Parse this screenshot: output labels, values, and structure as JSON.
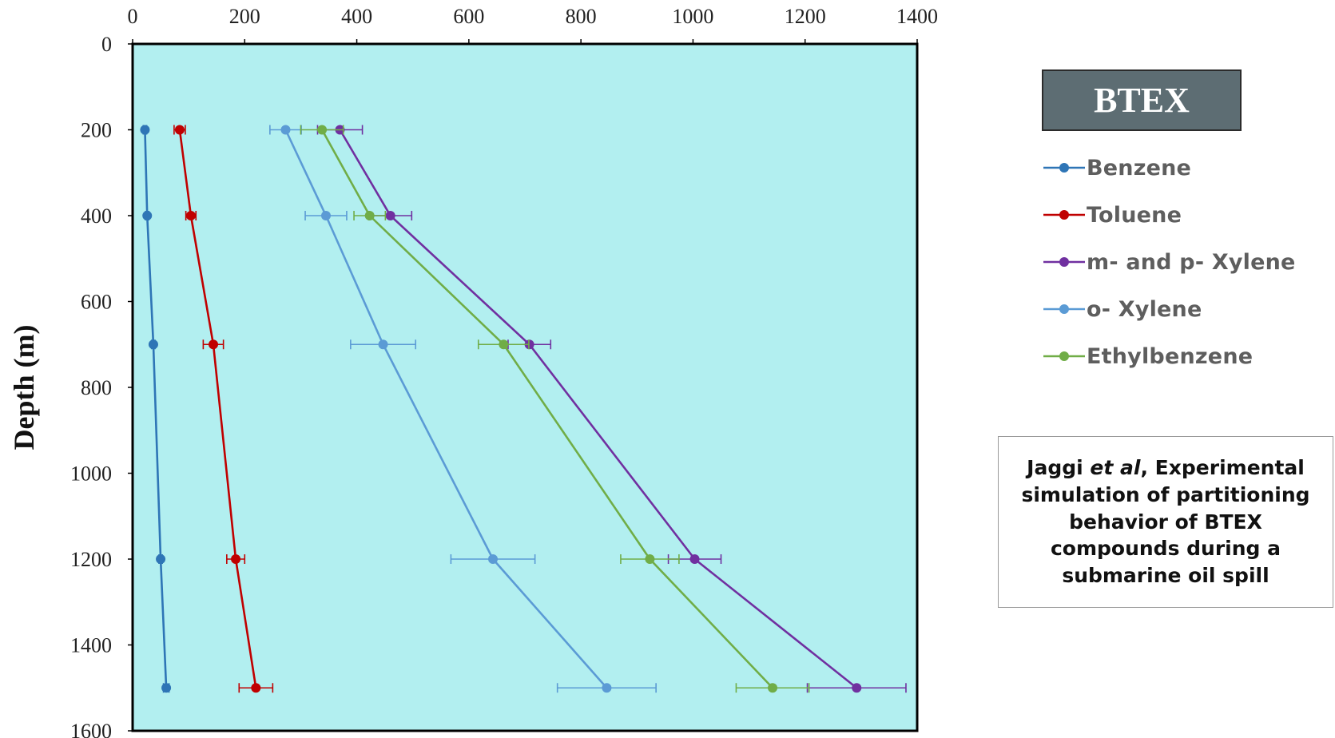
{
  "chart_data": {
    "type": "line",
    "ylabel": "Depth (m)",
    "xlabel": "",
    "x_axis_position": "top",
    "y_axis_reversed": true,
    "xlim": [
      0,
      1400
    ],
    "ylim": [
      0,
      1600
    ],
    "x_ticks": [
      0,
      200,
      400,
      600,
      800,
      1000,
      1200,
      1400
    ],
    "y_ticks": [
      0,
      200,
      400,
      600,
      800,
      1000,
      1200,
      1400,
      1600
    ],
    "plot_background": "#b2eff0",
    "grid": false,
    "legend_position": "right",
    "legend_title": "BTEX",
    "depths": [
      200,
      400,
      700,
      1200,
      1500
    ],
    "series": [
      {
        "name": "Benzene",
        "color": "#2e75b6",
        "values": [
          22,
          26,
          37,
          50,
          60
        ],
        "errors": [
          3,
          3,
          3,
          3,
          5
        ]
      },
      {
        "name": "Toluene",
        "color": "#c00000",
        "values": [
          84,
          104,
          144,
          184,
          220
        ],
        "errors": [
          10,
          9,
          18,
          16,
          30
        ]
      },
      {
        "name": "m- and p- Xylene",
        "color": "#7030a0",
        "values": [
          370,
          460,
          708,
          1003,
          1292
        ],
        "errors": [
          40,
          38,
          38,
          47,
          88
        ]
      },
      {
        "name": "o- Xylene",
        "color": "#5b9bd5",
        "values": [
          273,
          345,
          447,
          643,
          846
        ],
        "errors": [
          28,
          37,
          58,
          75,
          88
        ]
      },
      {
        "name": "Ethylbenzene",
        "color": "#70ad47",
        "values": [
          338,
          423,
          662,
          923,
          1142
        ],
        "errors": [
          38,
          28,
          45,
          52,
          65
        ]
      }
    ]
  },
  "note": {
    "author": "Jaggi",
    "etal": "et al",
    "text": ", Experimental simulation of partitioning behavior of BTEX compounds during a submarine oil spill"
  }
}
